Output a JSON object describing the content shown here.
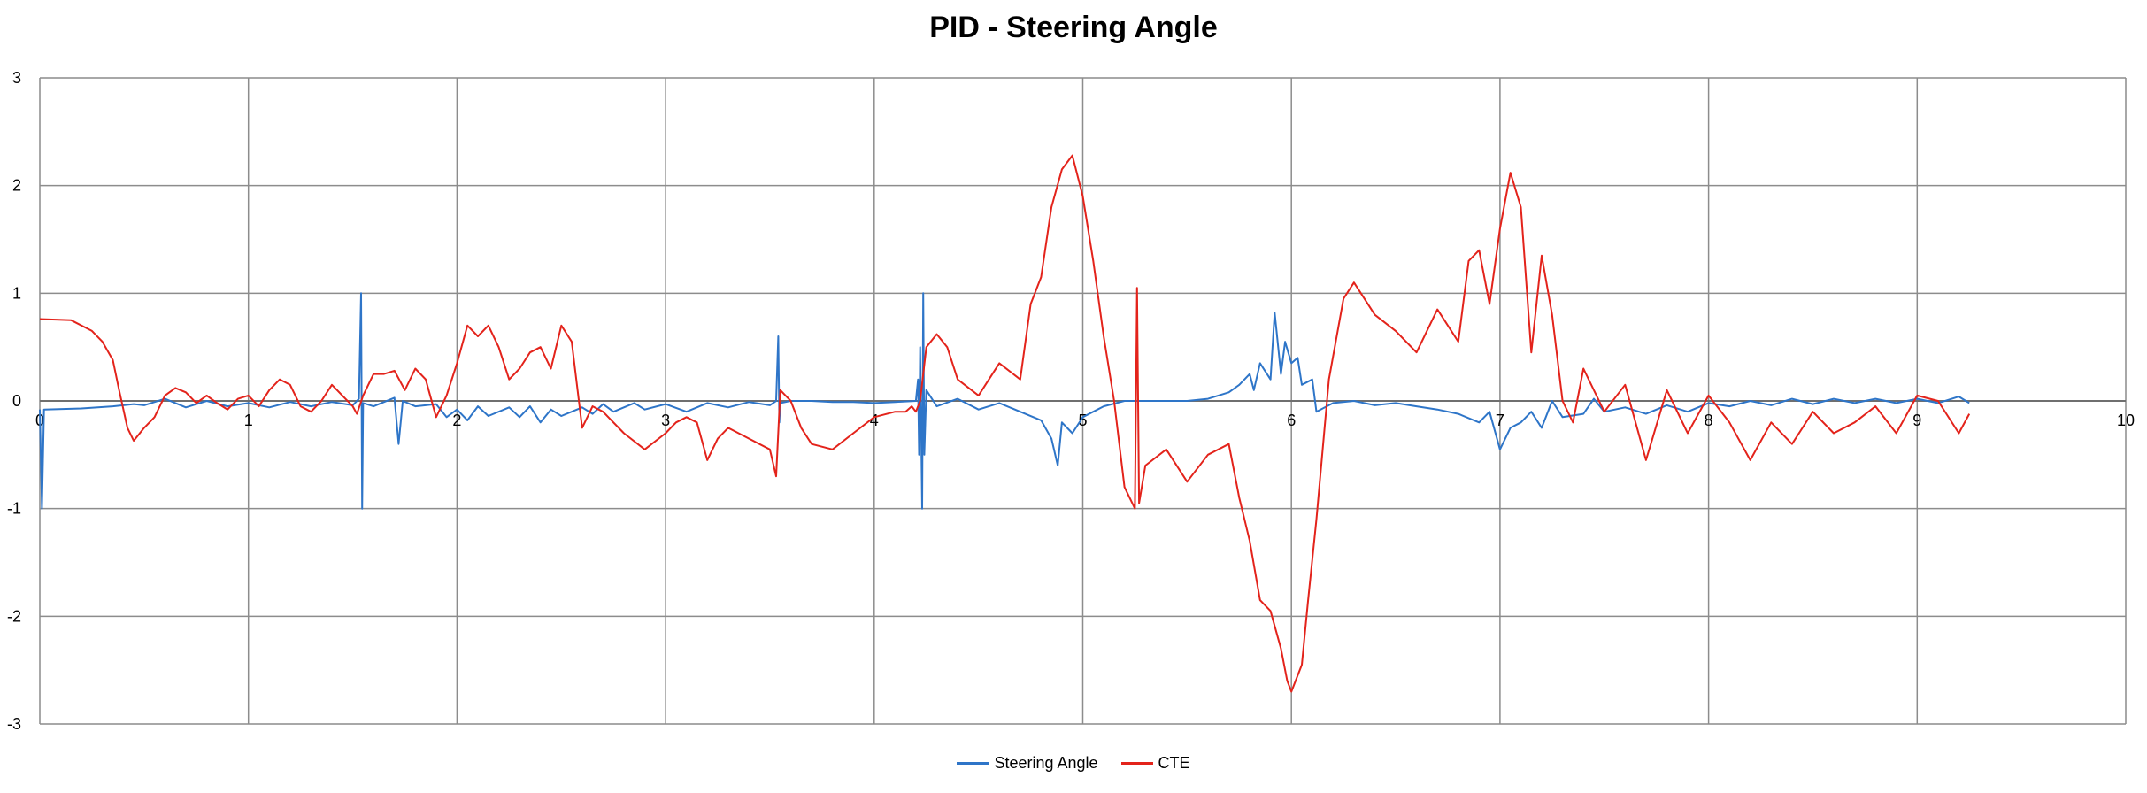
{
  "chart_data": {
    "type": "line",
    "title": "PID - Steering Angle",
    "xlabel": "",
    "ylabel": "",
    "xlim": [
      0,
      10
    ],
    "ylim": [
      -3,
      3
    ],
    "xticks": [
      "0",
      "1",
      "2",
      "3",
      "4",
      "5",
      "6",
      "7",
      "8",
      "9",
      "10"
    ],
    "yticks": [
      "3",
      "2",
      "1",
      "0",
      "-1",
      "-2",
      "-3"
    ],
    "grid": true,
    "legend_position": "bottom",
    "series": [
      {
        "name": "Steering Angle",
        "color": "#2e75c8",
        "points": [
          [
            0.0,
            -0.08
          ],
          [
            0.01,
            -1.0
          ],
          [
            0.02,
            -0.08
          ],
          [
            0.2,
            -0.07
          ],
          [
            0.35,
            -0.05
          ],
          [
            0.45,
            -0.03
          ],
          [
            0.5,
            -0.04
          ],
          [
            0.6,
            0.02
          ],
          [
            0.7,
            -0.06
          ],
          [
            0.8,
            0.0
          ],
          [
            0.9,
            -0.05
          ],
          [
            1.0,
            -0.02
          ],
          [
            1.1,
            -0.06
          ],
          [
            1.2,
            -0.01
          ],
          [
            1.3,
            -0.05
          ],
          [
            1.4,
            -0.01
          ],
          [
            1.5,
            -0.04
          ],
          [
            1.53,
            0.02
          ],
          [
            1.54,
            1.0
          ],
          [
            1.545,
            -1.0
          ],
          [
            1.55,
            -0.02
          ],
          [
            1.6,
            -0.05
          ],
          [
            1.7,
            0.03
          ],
          [
            1.72,
            -0.4
          ],
          [
            1.74,
            0.0
          ],
          [
            1.8,
            -0.05
          ],
          [
            1.9,
            -0.03
          ],
          [
            1.95,
            -0.15
          ],
          [
            2.0,
            -0.08
          ],
          [
            2.05,
            -0.18
          ],
          [
            2.1,
            -0.05
          ],
          [
            2.15,
            -0.14
          ],
          [
            2.25,
            -0.06
          ],
          [
            2.3,
            -0.15
          ],
          [
            2.35,
            -0.05
          ],
          [
            2.4,
            -0.2
          ],
          [
            2.45,
            -0.08
          ],
          [
            2.5,
            -0.14
          ],
          [
            2.6,
            -0.06
          ],
          [
            2.65,
            -0.12
          ],
          [
            2.7,
            -0.03
          ],
          [
            2.75,
            -0.1
          ],
          [
            2.85,
            -0.02
          ],
          [
            2.9,
            -0.08
          ],
          [
            3.0,
            -0.03
          ],
          [
            3.1,
            -0.1
          ],
          [
            3.2,
            -0.02
          ],
          [
            3.3,
            -0.06
          ],
          [
            3.4,
            -0.01
          ],
          [
            3.5,
            -0.04
          ],
          [
            3.53,
            0.0
          ],
          [
            3.54,
            0.6
          ],
          [
            3.545,
            -0.2
          ],
          [
            3.55,
            -0.02
          ],
          [
            3.6,
            0.0
          ],
          [
            3.7,
            0.0
          ],
          [
            3.8,
            -0.01
          ],
          [
            3.9,
            -0.01
          ],
          [
            4.0,
            -0.02
          ],
          [
            4.1,
            -0.01
          ],
          [
            4.2,
            0.0
          ],
          [
            4.21,
            0.2
          ],
          [
            4.215,
            -0.5
          ],
          [
            4.22,
            0.5
          ],
          [
            4.23,
            -1.0
          ],
          [
            4.235,
            1.0
          ],
          [
            4.24,
            -0.5
          ],
          [
            4.25,
            0.1
          ],
          [
            4.3,
            -0.05
          ],
          [
            4.4,
            0.02
          ],
          [
            4.5,
            -0.08
          ],
          [
            4.6,
            -0.02
          ],
          [
            4.7,
            -0.1
          ],
          [
            4.8,
            -0.18
          ],
          [
            4.85,
            -0.35
          ],
          [
            4.88,
            -0.6
          ],
          [
            4.9,
            -0.2
          ],
          [
            4.95,
            -0.3
          ],
          [
            5.0,
            -0.15
          ],
          [
            5.05,
            -0.1
          ],
          [
            5.1,
            -0.05
          ],
          [
            5.2,
            0.0
          ],
          [
            5.3,
            0.0
          ],
          [
            5.4,
            0.0
          ],
          [
            5.5,
            0.0
          ],
          [
            5.6,
            0.02
          ],
          [
            5.7,
            0.08
          ],
          [
            5.75,
            0.15
          ],
          [
            5.8,
            0.25
          ],
          [
            5.82,
            0.1
          ],
          [
            5.85,
            0.35
          ],
          [
            5.9,
            0.2
          ],
          [
            5.92,
            0.82
          ],
          [
            5.95,
            0.25
          ],
          [
            5.97,
            0.55
          ],
          [
            6.0,
            0.35
          ],
          [
            6.03,
            0.4
          ],
          [
            6.05,
            0.15
          ],
          [
            6.1,
            0.2
          ],
          [
            6.12,
            -0.1
          ],
          [
            6.2,
            -0.02
          ],
          [
            6.3,
            0.0
          ],
          [
            6.4,
            -0.04
          ],
          [
            6.5,
            -0.02
          ],
          [
            6.6,
            -0.05
          ],
          [
            6.7,
            -0.08
          ],
          [
            6.8,
            -0.12
          ],
          [
            6.9,
            -0.2
          ],
          [
            6.95,
            -0.1
          ],
          [
            7.0,
            -0.45
          ],
          [
            7.05,
            -0.25
          ],
          [
            7.1,
            -0.2
          ],
          [
            7.15,
            -0.1
          ],
          [
            7.2,
            -0.25
          ],
          [
            7.25,
            0.0
          ],
          [
            7.3,
            -0.15
          ],
          [
            7.4,
            -0.12
          ],
          [
            7.45,
            0.02
          ],
          [
            7.5,
            -0.1
          ],
          [
            7.6,
            -0.06
          ],
          [
            7.7,
            -0.12
          ],
          [
            7.8,
            -0.04
          ],
          [
            7.9,
            -0.1
          ],
          [
            8.0,
            -0.02
          ],
          [
            8.1,
            -0.05
          ],
          [
            8.2,
            0.0
          ],
          [
            8.3,
            -0.04
          ],
          [
            8.4,
            0.02
          ],
          [
            8.5,
            -0.03
          ],
          [
            8.6,
            0.02
          ],
          [
            8.7,
            -0.02
          ],
          [
            8.8,
            0.02
          ],
          [
            8.9,
            -0.02
          ],
          [
            9.0,
            0.02
          ],
          [
            9.1,
            -0.02
          ],
          [
            9.2,
            0.04
          ],
          [
            9.25,
            -0.02
          ]
        ]
      },
      {
        "name": "CTE",
        "color": "#e3231b",
        "points": [
          [
            0.0,
            0.76
          ],
          [
            0.15,
            0.75
          ],
          [
            0.25,
            0.65
          ],
          [
            0.3,
            0.55
          ],
          [
            0.35,
            0.38
          ],
          [
            0.38,
            0.1
          ],
          [
            0.42,
            -0.25
          ],
          [
            0.45,
            -0.37
          ],
          [
            0.5,
            -0.25
          ],
          [
            0.55,
            -0.15
          ],
          [
            0.6,
            0.05
          ],
          [
            0.65,
            0.12
          ],
          [
            0.7,
            0.08
          ],
          [
            0.75,
            -0.02
          ],
          [
            0.8,
            0.05
          ],
          [
            0.85,
            -0.02
          ],
          [
            0.9,
            -0.08
          ],
          [
            0.95,
            0.02
          ],
          [
            1.0,
            0.05
          ],
          [
            1.05,
            -0.05
          ],
          [
            1.1,
            0.1
          ],
          [
            1.15,
            0.2
          ],
          [
            1.2,
            0.15
          ],
          [
            1.25,
            -0.05
          ],
          [
            1.3,
            -0.1
          ],
          [
            1.35,
            0.0
          ],
          [
            1.4,
            0.15
          ],
          [
            1.45,
            0.05
          ],
          [
            1.5,
            -0.05
          ],
          [
            1.52,
            -0.12
          ],
          [
            1.55,
            0.05
          ],
          [
            1.6,
            0.25
          ],
          [
            1.65,
            0.25
          ],
          [
            1.7,
            0.28
          ],
          [
            1.75,
            0.1
          ],
          [
            1.8,
            0.3
          ],
          [
            1.85,
            0.2
          ],
          [
            1.9,
            -0.15
          ],
          [
            1.95,
            0.05
          ],
          [
            2.0,
            0.35
          ],
          [
            2.05,
            0.7
          ],
          [
            2.1,
            0.6
          ],
          [
            2.15,
            0.7
          ],
          [
            2.2,
            0.5
          ],
          [
            2.25,
            0.2
          ],
          [
            2.3,
            0.3
          ],
          [
            2.35,
            0.45
          ],
          [
            2.4,
            0.5
          ],
          [
            2.45,
            0.3
          ],
          [
            2.5,
            0.7
          ],
          [
            2.55,
            0.55
          ],
          [
            2.6,
            -0.25
          ],
          [
            2.65,
            -0.05
          ],
          [
            2.7,
            -0.1
          ],
          [
            2.8,
            -0.3
          ],
          [
            2.9,
            -0.45
          ],
          [
            3.0,
            -0.3
          ],
          [
            3.05,
            -0.2
          ],
          [
            3.1,
            -0.15
          ],
          [
            3.15,
            -0.2
          ],
          [
            3.2,
            -0.55
          ],
          [
            3.25,
            -0.35
          ],
          [
            3.3,
            -0.25
          ],
          [
            3.4,
            -0.35
          ],
          [
            3.5,
            -0.45
          ],
          [
            3.53,
            -0.7
          ],
          [
            3.55,
            0.1
          ],
          [
            3.6,
            0.0
          ],
          [
            3.65,
            -0.25
          ],
          [
            3.7,
            -0.4
          ],
          [
            3.8,
            -0.45
          ],
          [
            3.9,
            -0.3
          ],
          [
            4.0,
            -0.15
          ],
          [
            4.1,
            -0.1
          ],
          [
            4.15,
            -0.1
          ],
          [
            4.18,
            -0.05
          ],
          [
            4.2,
            -0.1
          ],
          [
            4.22,
            0.0
          ],
          [
            4.25,
            0.5
          ],
          [
            4.3,
            0.62
          ],
          [
            4.35,
            0.5
          ],
          [
            4.4,
            0.2
          ],
          [
            4.5,
            0.05
          ],
          [
            4.6,
            0.35
          ],
          [
            4.7,
            0.2
          ],
          [
            4.75,
            0.9
          ],
          [
            4.8,
            1.15
          ],
          [
            4.85,
            1.8
          ],
          [
            4.9,
            2.15
          ],
          [
            4.95,
            2.28
          ],
          [
            5.0,
            1.9
          ],
          [
            5.05,
            1.3
          ],
          [
            5.1,
            0.6
          ],
          [
            5.15,
            0.0
          ],
          [
            5.2,
            -0.8
          ],
          [
            5.25,
            -1.0
          ],
          [
            5.26,
            1.05
          ],
          [
            5.27,
            -0.95
          ],
          [
            5.3,
            -0.6
          ],
          [
            5.4,
            -0.45
          ],
          [
            5.5,
            -0.75
          ],
          [
            5.6,
            -0.5
          ],
          [
            5.7,
            -0.4
          ],
          [
            5.75,
            -0.9
          ],
          [
            5.8,
            -1.3
          ],
          [
            5.85,
            -1.85
          ],
          [
            5.9,
            -1.95
          ],
          [
            5.95,
            -2.3
          ],
          [
            5.98,
            -2.6
          ],
          [
            6.0,
            -2.7
          ],
          [
            6.05,
            -2.45
          ],
          [
            6.08,
            -1.85
          ],
          [
            6.12,
            -1.1
          ],
          [
            6.18,
            0.2
          ],
          [
            6.25,
            0.95
          ],
          [
            6.3,
            1.1
          ],
          [
            6.4,
            0.8
          ],
          [
            6.5,
            0.65
          ],
          [
            6.6,
            0.45
          ],
          [
            6.7,
            0.85
          ],
          [
            6.8,
            0.55
          ],
          [
            6.85,
            1.3
          ],
          [
            6.9,
            1.4
          ],
          [
            6.95,
            0.9
          ],
          [
            7.0,
            1.6
          ],
          [
            7.05,
            2.12
          ],
          [
            7.1,
            1.8
          ],
          [
            7.15,
            0.45
          ],
          [
            7.2,
            1.35
          ],
          [
            7.25,
            0.8
          ],
          [
            7.3,
            0.0
          ],
          [
            7.35,
            -0.2
          ],
          [
            7.4,
            0.3
          ],
          [
            7.5,
            -0.1
          ],
          [
            7.6,
            0.15
          ],
          [
            7.7,
            -0.55
          ],
          [
            7.8,
            0.1
          ],
          [
            7.9,
            -0.3
          ],
          [
            8.0,
            0.05
          ],
          [
            8.1,
            -0.2
          ],
          [
            8.2,
            -0.55
          ],
          [
            8.3,
            -0.2
          ],
          [
            8.4,
            -0.4
          ],
          [
            8.5,
            -0.1
          ],
          [
            8.6,
            -0.3
          ],
          [
            8.7,
            -0.2
          ],
          [
            8.8,
            -0.05
          ],
          [
            8.9,
            -0.3
          ],
          [
            9.0,
            0.05
          ],
          [
            9.1,
            0.0
          ],
          [
            9.2,
            -0.3
          ],
          [
            9.25,
            -0.12
          ]
        ]
      }
    ]
  }
}
